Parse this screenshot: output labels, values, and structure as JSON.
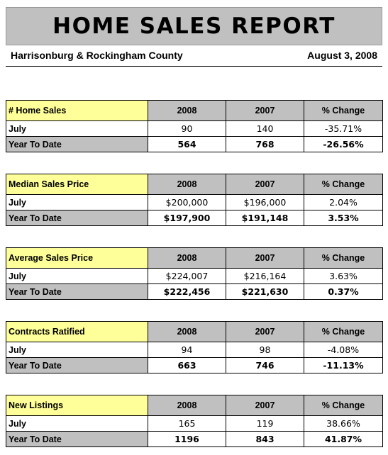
{
  "report": {
    "title": "HOME SALES REPORT",
    "region": "Harrisonburg & Rockingham County",
    "date": "August 3, 2008"
  },
  "sections": [
    {
      "title": "# Home Sales",
      "columns": [
        "2008",
        "2007",
        "% Change"
      ],
      "rows": [
        {
          "label": "July",
          "values": [
            "90",
            "140",
            "-35.71%"
          ]
        },
        {
          "label": "Year To Date",
          "values": [
            "564",
            "768",
            "-26.56%"
          ]
        }
      ]
    },
    {
      "title": "Median Sales Price",
      "columns": [
        "2008",
        "2007",
        "% Change"
      ],
      "rows": [
        {
          "label": "July",
          "values": [
            "$200,000",
            "$196,000",
            "2.04%"
          ]
        },
        {
          "label": "Year To Date",
          "values": [
            "$197,900",
            "$191,148",
            "3.53%"
          ]
        }
      ]
    },
    {
      "title": "Average Sales Price",
      "columns": [
        "2008",
        "2007",
        "% Change"
      ],
      "rows": [
        {
          "label": "July",
          "values": [
            "$224,007",
            "$216,164",
            "3.63%"
          ]
        },
        {
          "label": "Year To Date",
          "values": [
            "$222,456",
            "$221,630",
            "0.37%"
          ]
        }
      ]
    },
    {
      "title": "Contracts Ratified",
      "columns": [
        "2008",
        "2007",
        "% Change"
      ],
      "rows": [
        {
          "label": "July",
          "values": [
            "94",
            "98",
            "-4.08%"
          ]
        },
        {
          "label": "Year To Date",
          "values": [
            "663",
            "746",
            "-11.13%"
          ]
        }
      ]
    },
    {
      "title": "New Listings",
      "columns": [
        "2008",
        "2007",
        "% Change"
      ],
      "rows": [
        {
          "label": "July",
          "values": [
            "165",
            "119",
            "38.66%"
          ]
        },
        {
          "label": "Year To Date",
          "values": [
            "1196",
            "843",
            "41.87%"
          ]
        }
      ]
    }
  ]
}
